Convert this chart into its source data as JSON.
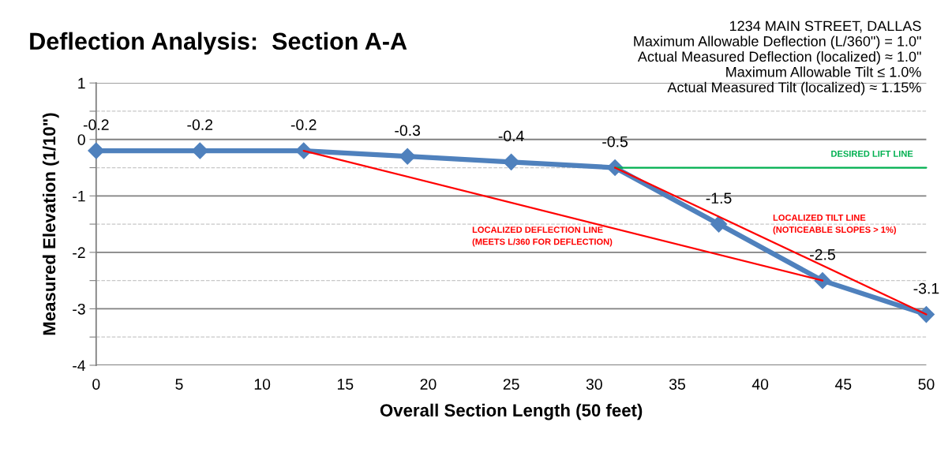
{
  "chart_data": {
    "type": "line",
    "title": "Deflection Analysis:  Section A-A",
    "xlabel": "Overall Section Length (50 feet)",
    "ylabel": "Measured Elevation (1/10\")",
    "series": [
      {
        "color": "#4f81bd",
        "x": [
          0,
          6.25,
          12.5,
          18.75,
          25,
          31.25,
          37.5,
          43.75,
          50
        ],
        "values": [
          -0.2,
          -0.2,
          -0.2,
          -0.3,
          -0.4,
          -0.5,
          -1.5,
          -2.5,
          -3.1
        ],
        "marker": "diamond",
        "data_labels": true
      },
      {
        "type": "line",
        "name": "DESIRED LIFT LINE",
        "color": "#00b050",
        "x": [
          31.25,
          50
        ],
        "values": [
          -0.5,
          -0.5
        ],
        "marker": "none"
      },
      {
        "type": "line",
        "name": "LOCALIZED DEFLECTION LINE\n(MEETS L/360 FOR DEFLECTION)",
        "color": "#ff0000",
        "x": [
          12.5,
          43.75
        ],
        "values": [
          -0.2,
          -2.5
        ],
        "marker": "none"
      },
      {
        "type": "line",
        "name": "LOCALIZED TILT LINE\n(NOTICEABLE SLOPES > 1%)",
        "color": "#ff0000",
        "x": [
          31.25,
          50
        ],
        "values": [
          -0.5,
          -3.1
        ],
        "marker": "none"
      }
    ],
    "xlim": [
      0,
      50
    ],
    "xticks": [
      0,
      5,
      10,
      15,
      20,
      25,
      30,
      35,
      40,
      45,
      50
    ],
    "ylim": [
      -4,
      1
    ],
    "yticks": [
      -4,
      {
        "value": -3.5,
        "label": null
      },
      -3,
      {
        "value": -2.5,
        "label": null
      },
      -2,
      {
        "value": -1.5,
        "label": null
      },
      -1,
      {
        "value": -0.5,
        "label": null
      },
      0,
      {
        "value": 0.5,
        "label": null
      },
      1
    ],
    "grid": "y",
    "legend": false,
    "annotations": [
      "1234 MAIN STREET, DALLAS\nMaximum Allowable Deflection (L/360\") = 1.0\"\nActual Measured Deflection (localized) ≈ 1.0\"\nMaximum Allowable Tilt ≤ 1.0%\nActual Measured Tilt (localized) ≈ 1.15%"
    ]
  }
}
